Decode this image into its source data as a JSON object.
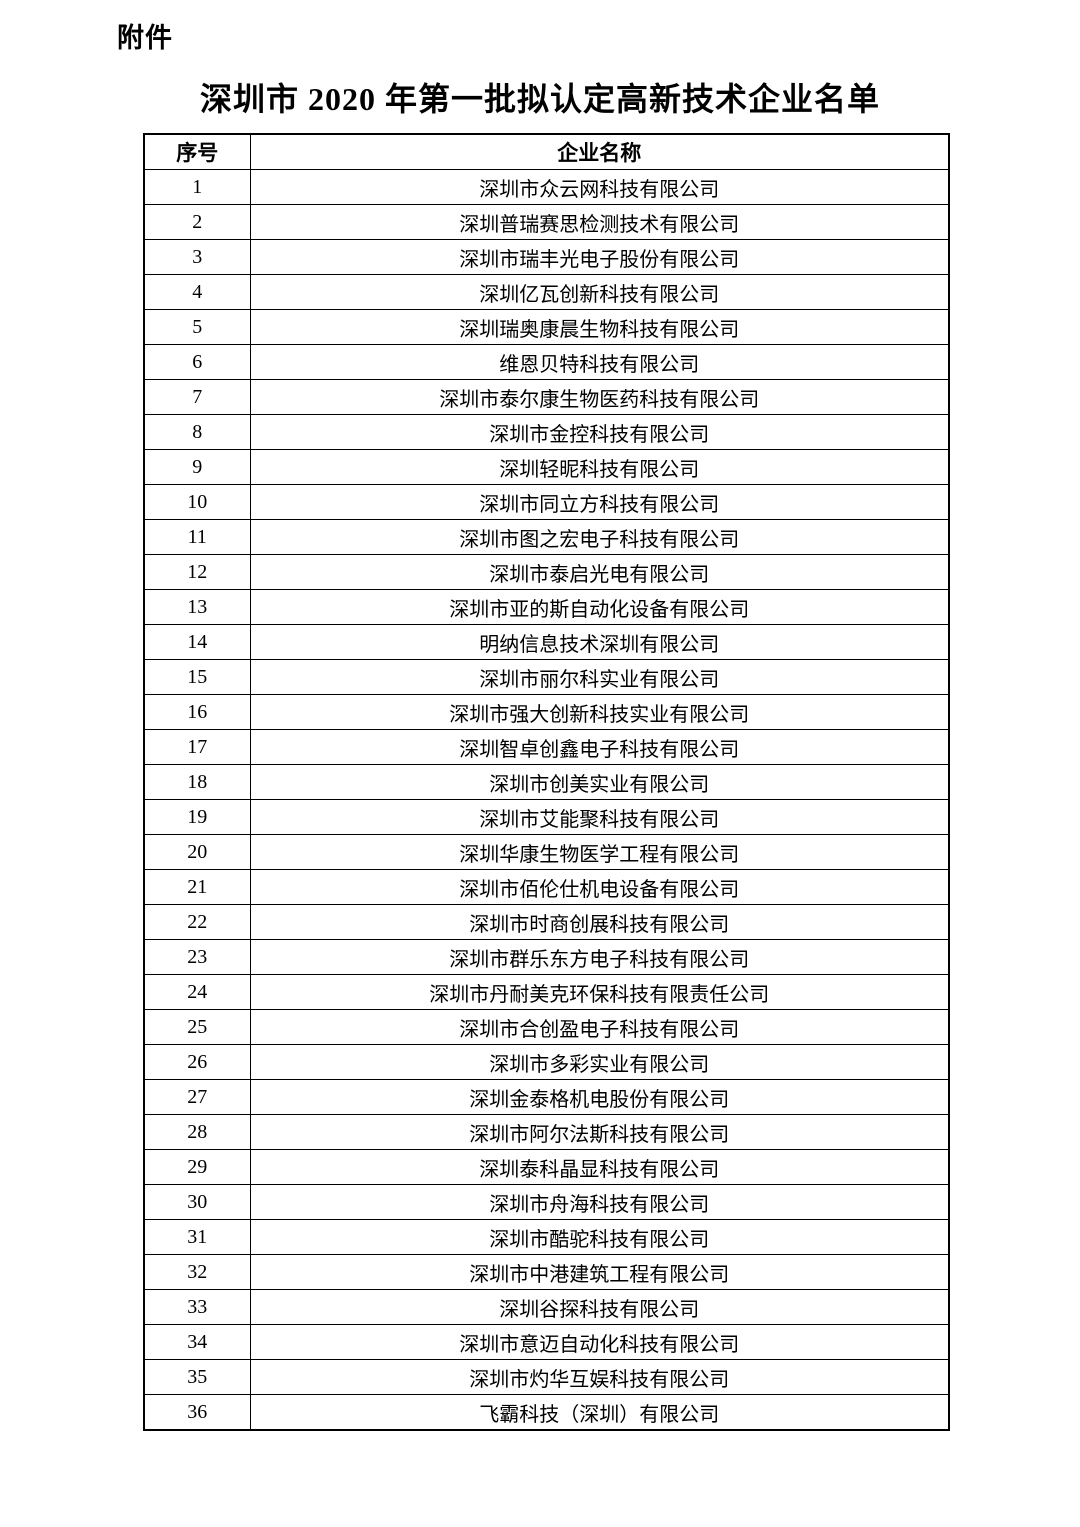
{
  "attachment_label": "附件",
  "title": "深圳市 2020 年第一批拟认定高新技术企业名单",
  "table": {
    "headers": {
      "no": "序号",
      "name": "企业名称"
    },
    "rows": [
      {
        "no": "1",
        "name": "深圳市众云网科技有限公司"
      },
      {
        "no": "2",
        "name": "深圳普瑞赛思检测技术有限公司"
      },
      {
        "no": "3",
        "name": "深圳市瑞丰光电子股份有限公司"
      },
      {
        "no": "4",
        "name": "深圳亿瓦创新科技有限公司"
      },
      {
        "no": "5",
        "name": "深圳瑞奥康晨生物科技有限公司"
      },
      {
        "no": "6",
        "name": "维恩贝特科技有限公司"
      },
      {
        "no": "7",
        "name": "深圳市泰尔康生物医药科技有限公司"
      },
      {
        "no": "8",
        "name": "深圳市金控科技有限公司"
      },
      {
        "no": "9",
        "name": "深圳轻昵科技有限公司"
      },
      {
        "no": "10",
        "name": "深圳市同立方科技有限公司"
      },
      {
        "no": "11",
        "name": "深圳市图之宏电子科技有限公司"
      },
      {
        "no": "12",
        "name": "深圳市泰启光电有限公司"
      },
      {
        "no": "13",
        "name": "深圳市亚的斯自动化设备有限公司"
      },
      {
        "no": "14",
        "name": "明纳信息技术深圳有限公司"
      },
      {
        "no": "15",
        "name": "深圳市丽尔科实业有限公司"
      },
      {
        "no": "16",
        "name": "深圳市强大创新科技实业有限公司"
      },
      {
        "no": "17",
        "name": "深圳智卓创鑫电子科技有限公司"
      },
      {
        "no": "18",
        "name": "深圳市创美实业有限公司"
      },
      {
        "no": "19",
        "name": "深圳市艾能聚科技有限公司"
      },
      {
        "no": "20",
        "name": "深圳华康生物医学工程有限公司"
      },
      {
        "no": "21",
        "name": "深圳市佰伦仕机电设备有限公司"
      },
      {
        "no": "22",
        "name": "深圳市时商创展科技有限公司"
      },
      {
        "no": "23",
        "name": "深圳市群乐东方电子科技有限公司"
      },
      {
        "no": "24",
        "name": "深圳市丹耐美克环保科技有限责任公司"
      },
      {
        "no": "25",
        "name": "深圳市合创盈电子科技有限公司"
      },
      {
        "no": "26",
        "name": "深圳市多彩实业有限公司"
      },
      {
        "no": "27",
        "name": "深圳金泰格机电股份有限公司"
      },
      {
        "no": "28",
        "name": "深圳市阿尔法斯科技有限公司"
      },
      {
        "no": "29",
        "name": "深圳泰科晶显科技有限公司"
      },
      {
        "no": "30",
        "name": "深圳市舟海科技有限公司"
      },
      {
        "no": "31",
        "name": "深圳市酷驼科技有限公司"
      },
      {
        "no": "32",
        "name": "深圳市中港建筑工程有限公司"
      },
      {
        "no": "33",
        "name": "深圳谷探科技有限公司"
      },
      {
        "no": "34",
        "name": "深圳市意迈自动化科技有限公司"
      },
      {
        "no": "35",
        "name": "深圳市灼华互娱科技有限公司"
      },
      {
        "no": "36",
        "name": "飞霸科技（深圳）有限公司"
      }
    ]
  }
}
